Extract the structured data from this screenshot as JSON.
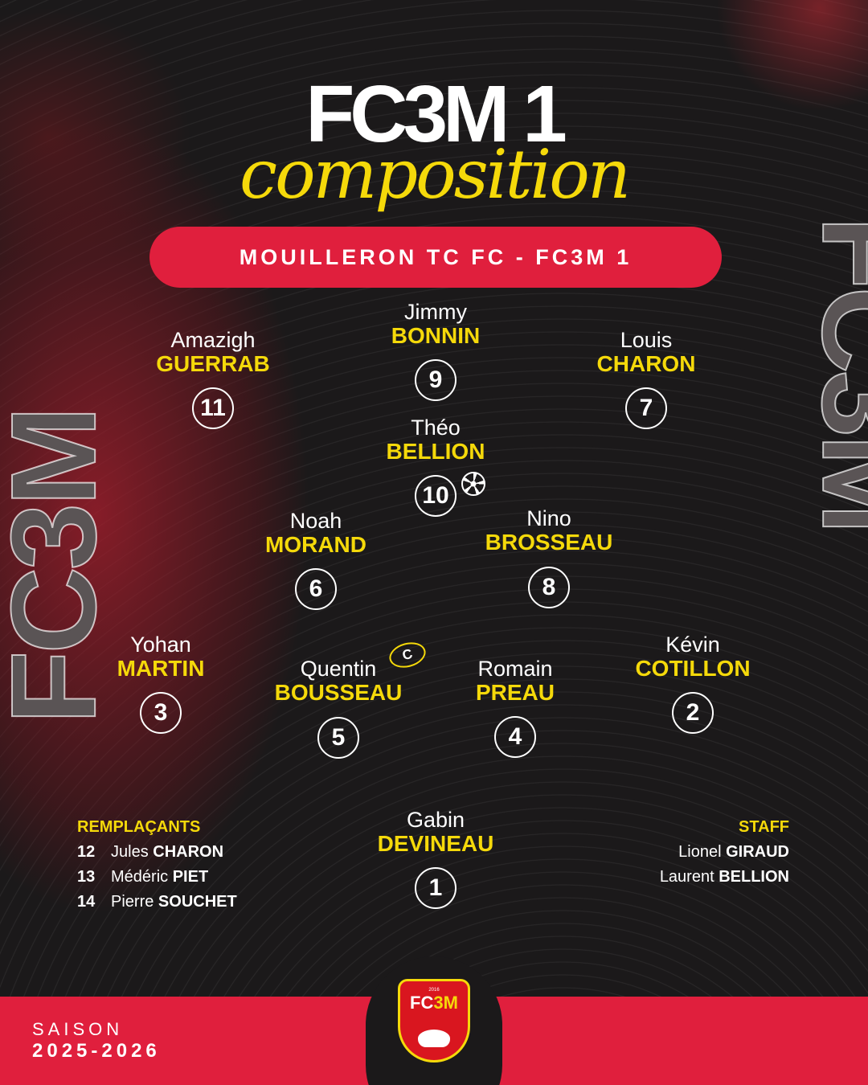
{
  "header": {
    "title": "FC3M 1",
    "subtitle": "composition",
    "match": "MOUILLERON TC FC - FC3M 1"
  },
  "players": [
    {
      "first": "Jimmy",
      "last": "BONNIN",
      "number": "9"
    },
    {
      "first": "Amazigh",
      "last": "GUERRAB",
      "number": "11"
    },
    {
      "first": "Louis",
      "last": "CHARON",
      "number": "7"
    },
    {
      "first": "Théo",
      "last": "BELLION",
      "number": "10"
    },
    {
      "first": "Noah",
      "last": "MORAND",
      "number": "6"
    },
    {
      "first": "Nino",
      "last": "BROSSEAU",
      "number": "8"
    },
    {
      "first": "Yohan",
      "last": "MARTIN",
      "number": "3"
    },
    {
      "first": "Quentin",
      "last": "BOUSSEAU",
      "number": "5"
    },
    {
      "first": "Romain",
      "last": "PREAU",
      "number": "4"
    },
    {
      "first": "Kévin",
      "last": "COTILLON",
      "number": "2"
    },
    {
      "first": "Gabin",
      "last": "DEVINEAU",
      "number": "1"
    }
  ],
  "captain_mark": "C",
  "subs": {
    "title": "REMPLAÇANTS",
    "items": [
      {
        "number": "12",
        "first": "Jules",
        "last": "CHARON"
      },
      {
        "number": "13",
        "first": "Médéric",
        "last": "PIET"
      },
      {
        "number": "14",
        "first": "Pierre",
        "last": "SOUCHET"
      }
    ]
  },
  "staff": {
    "title": "STAFF",
    "items": [
      {
        "first": "Lionel",
        "last": "GIRAUD"
      },
      {
        "first": "Laurent",
        "last": "BELLION"
      }
    ]
  },
  "footer": {
    "season_label": "SAISON",
    "season": "2025-2026"
  },
  "watermark": "FC3M",
  "logo": {
    "year": "2016",
    "name": "FC3M"
  },
  "colors": {
    "red": "#e01f3d",
    "yellow": "#f5d90a",
    "background": "#1b191a"
  }
}
